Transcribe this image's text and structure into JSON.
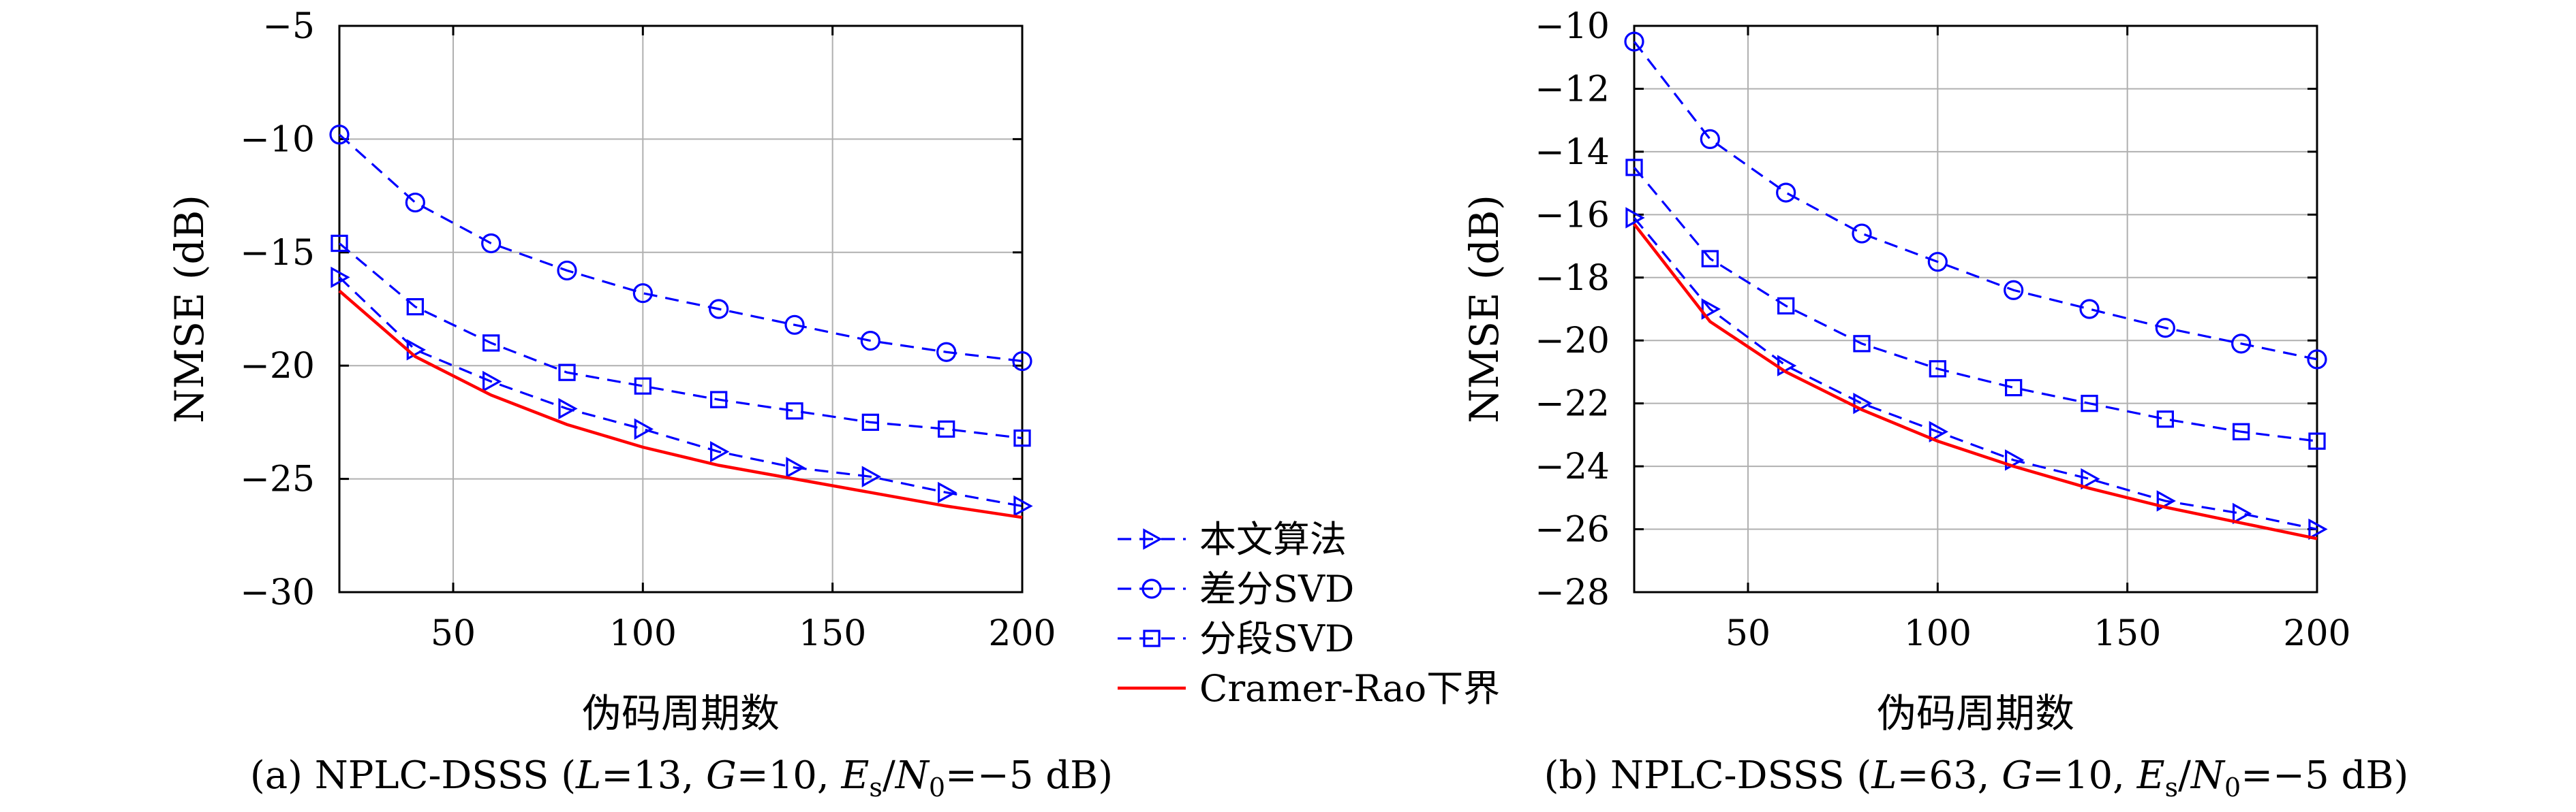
{
  "colors": {
    "blue": "#0000ff",
    "red": "#ff0000",
    "grid": "#b0b0b0",
    "axis": "#000000"
  },
  "legend": {
    "items": [
      {
        "label": "本文算法",
        "marker": "triangle-right",
        "color": "#0000ff",
        "dash": true
      },
      {
        "label": "差分SVD",
        "marker": "circle",
        "color": "#0000ff",
        "dash": true
      },
      {
        "label": "分段SVD",
        "marker": "square",
        "color": "#0000ff",
        "dash": true
      },
      {
        "label": "Cramer-Rao下界",
        "marker": "none",
        "color": "#ff0000",
        "dash": false
      }
    ]
  },
  "chart_data": [
    {
      "type": "line",
      "caption": {
        "prefix": "(a) NPLC-DSSS (",
        "parts": [
          {
            "text": "L",
            "italic": true
          },
          {
            "text": "=13, "
          },
          {
            "text": "G",
            "italic": true
          },
          {
            "text": "=10, "
          },
          {
            "text": "E",
            "italic": true
          },
          {
            "text": "s",
            "sub": true
          },
          {
            "text": "/"
          },
          {
            "text": "N",
            "italic": true
          },
          {
            "text": "0",
            "sub": true
          },
          {
            "text": "=−5 dB)"
          }
        ]
      },
      "xlabel": "伪码周期数",
      "ylabel": "NMSE (dB)",
      "xlim": [
        20,
        200
      ],
      "ylim": [
        -30,
        -5
      ],
      "xticks": [
        50,
        100,
        150,
        200
      ],
      "xtick_labels": [
        "50",
        "100",
        "150",
        "200"
      ],
      "yticks": [
        -30,
        -25,
        -20,
        -15,
        -10,
        -5
      ],
      "ytick_labels": [
        "−30",
        "−25",
        "−20",
        "−15",
        "−10",
        "−5"
      ],
      "grid": true,
      "series": [
        {
          "name": "本文算法",
          "x": [
            20,
            40,
            60,
            80,
            100,
            120,
            140,
            160,
            180,
            200
          ],
          "y": [
            -16.1,
            -19.3,
            -20.7,
            -21.9,
            -22.8,
            -23.8,
            -24.5,
            -24.9,
            -25.6,
            -26.2
          ]
        },
        {
          "name": "差分SVD",
          "x": [
            20,
            40,
            60,
            80,
            100,
            120,
            140,
            160,
            180,
            200
          ],
          "y": [
            -9.8,
            -12.8,
            -14.6,
            -15.8,
            -16.8,
            -17.5,
            -18.2,
            -18.9,
            -19.4,
            -19.8
          ]
        },
        {
          "name": "分段SVD",
          "x": [
            20,
            40,
            60,
            80,
            100,
            120,
            140,
            160,
            180,
            200
          ],
          "y": [
            -14.6,
            -17.4,
            -19.0,
            -20.3,
            -20.9,
            -21.5,
            -22.0,
            -22.5,
            -22.8,
            -23.2
          ]
        },
        {
          "name": "Cramer-Rao下界",
          "x": [
            20,
            40,
            60,
            80,
            100,
            120,
            140,
            160,
            180,
            200
          ],
          "y": [
            -16.7,
            -19.6,
            -21.3,
            -22.6,
            -23.6,
            -24.4,
            -25.0,
            -25.6,
            -26.2,
            -26.7
          ]
        }
      ]
    },
    {
      "type": "line",
      "caption": {
        "prefix": "(b) NPLC-DSSS (",
        "parts": [
          {
            "text": "L",
            "italic": true
          },
          {
            "text": "=63, "
          },
          {
            "text": "G",
            "italic": true
          },
          {
            "text": "=10, "
          },
          {
            "text": "E",
            "italic": true
          },
          {
            "text": "s",
            "sub": true
          },
          {
            "text": "/"
          },
          {
            "text": "N",
            "italic": true
          },
          {
            "text": "0",
            "sub": true
          },
          {
            "text": "=−5 dB)"
          }
        ]
      },
      "xlabel": "伪码周期数",
      "ylabel": "NMSE (dB)",
      "xlim": [
        20,
        200
      ],
      "ylim": [
        -28,
        -10
      ],
      "xticks": [
        50,
        100,
        150,
        200
      ],
      "xtick_labels": [
        "50",
        "100",
        "150",
        "200"
      ],
      "yticks": [
        -28,
        -26,
        -24,
        -22,
        -20,
        -18,
        -16,
        -14,
        -12,
        -10
      ],
      "ytick_labels": [
        "−28",
        "−26",
        "−24",
        "−22",
        "−20",
        "−18",
        "−16",
        "−14",
        "−12",
        "−10"
      ],
      "grid": true,
      "series": [
        {
          "name": "本文算法",
          "x": [
            20,
            40,
            60,
            80,
            100,
            120,
            140,
            160,
            180,
            200
          ],
          "y": [
            -16.1,
            -19.0,
            -20.8,
            -22.0,
            -22.9,
            -23.8,
            -24.4,
            -25.1,
            -25.5,
            -26.0
          ]
        },
        {
          "name": "差分SVD",
          "x": [
            20,
            40,
            60,
            80,
            100,
            120,
            140,
            160,
            180,
            200
          ],
          "y": [
            -10.5,
            -13.6,
            -15.3,
            -16.6,
            -17.5,
            -18.4,
            -19.0,
            -19.6,
            -20.1,
            -20.6
          ]
        },
        {
          "name": "分段SVD",
          "x": [
            20,
            40,
            60,
            80,
            100,
            120,
            140,
            160,
            180,
            200
          ],
          "y": [
            -14.5,
            -17.4,
            -18.9,
            -20.1,
            -20.9,
            -21.5,
            -22.0,
            -22.5,
            -22.9,
            -23.2
          ]
        },
        {
          "name": "Cramer-Rao下界",
          "x": [
            20,
            40,
            60,
            80,
            100,
            120,
            140,
            160,
            180,
            200
          ],
          "y": [
            -16.3,
            -19.4,
            -21.0,
            -22.2,
            -23.2,
            -24.0,
            -24.7,
            -25.3,
            -25.8,
            -26.3
          ]
        }
      ]
    }
  ]
}
